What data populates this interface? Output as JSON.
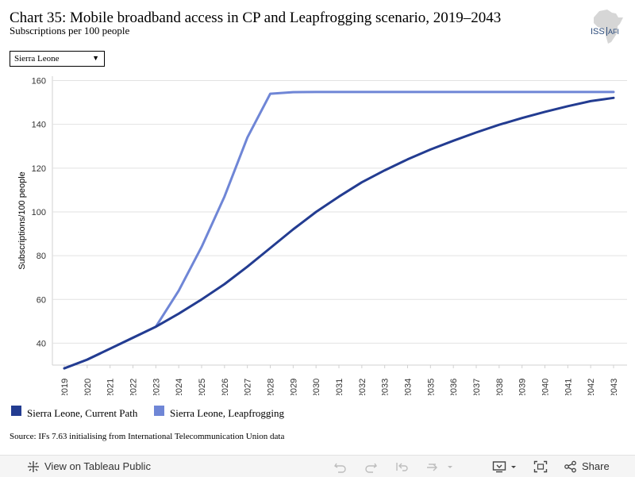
{
  "header": {
    "title": "Chart 35: Mobile broadband access in CP and Leapfrogging scenario, 2019–2043",
    "subtitle": "Subscriptions per 100 people",
    "logo_text": "ISS",
    "logo_suffix": "AFI"
  },
  "filter": {
    "selected": "Sierra Leone"
  },
  "source": "Source: IFs 7.63 initialising from International Telecommunication Union data",
  "legend": [
    {
      "label": "Sierra Leone, Current Path",
      "color": "#233c91"
    },
    {
      "label": "Sierra Leone, Leapfrogging",
      "color": "#6f86d6"
    }
  ],
  "toolbar": {
    "view_label": "View on Tableau Public",
    "share_label": "Share"
  },
  "chart_data": {
    "type": "line",
    "title": "Chart 35: Mobile broadband access in CP and Leapfrogging scenario, 2019–2043",
    "subtitle": "Subscriptions per 100 people",
    "xlabel": "",
    "ylabel": "Subscriptions/100 people",
    "ylim": [
      30,
      162
    ],
    "yticks": [
      40,
      60,
      80,
      100,
      120,
      140,
      160
    ],
    "grid": true,
    "legend_position": "bottom-left",
    "x": [
      2019,
      2020,
      2021,
      2022,
      2023,
      2024,
      2025,
      2026,
      2027,
      2028,
      2029,
      2030,
      2031,
      2032,
      2033,
      2034,
      2035,
      2036,
      2037,
      2038,
      2039,
      2040,
      2041,
      2042,
      2043
    ],
    "series": [
      {
        "name": "Sierra Leone, Current Path",
        "color": "#233c91",
        "values": [
          28.5,
          32.5,
          37.5,
          42.5,
          47.5,
          53.5,
          60,
          67,
          75,
          83.5,
          92,
          100,
          107,
          113.5,
          119,
          124,
          128.5,
          132.5,
          136.3,
          139.8,
          142.9,
          145.7,
          148.3,
          150.6,
          152.1
        ]
      },
      {
        "name": "Sierra Leone, Leapfrogging",
        "color": "#6f86d6",
        "values": [
          28.5,
          32.5,
          37.5,
          42.5,
          47.5,
          64,
          84,
          107,
          134,
          154,
          154.7,
          154.8,
          154.8,
          154.8,
          154.8,
          154.8,
          154.8,
          154.8,
          154.8,
          154.8,
          154.8,
          154.8,
          154.8,
          154.8,
          154.8
        ]
      }
    ]
  }
}
